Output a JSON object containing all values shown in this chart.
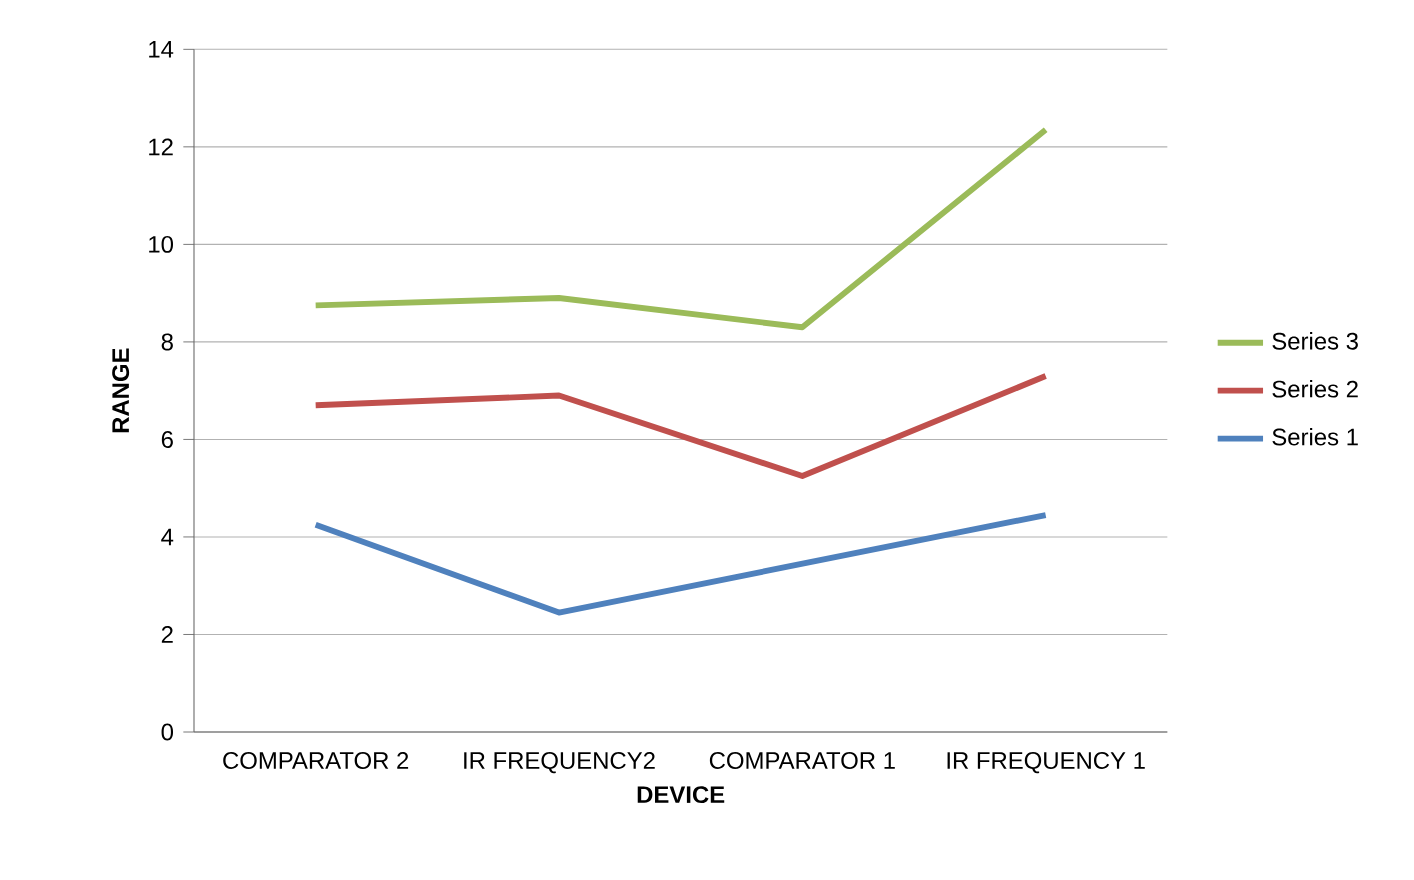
{
  "chart_data": {
    "type": "line",
    "xlabel": "DEVICE",
    "ylabel": "RANGE",
    "categories": [
      "COMPARATOR 2",
      "IR FREQUENCY2",
      "COMPARATOR 1",
      "IR FREQUENCY 1"
    ],
    "series": [
      {
        "name": "Series 1",
        "color": "#4f81bd",
        "values": [
          4.25,
          2.45,
          3.45,
          4.45
        ]
      },
      {
        "name": "Series 2",
        "color": "#c0504d",
        "values": [
          6.7,
          6.9,
          5.25,
          7.3
        ]
      },
      {
        "name": "Series 3",
        "color": "#9bbb59",
        "values": [
          8.75,
          8.9,
          8.3,
          12.35
        ]
      }
    ],
    "ylim": [
      0,
      14
    ],
    "yticks": [
      0,
      2,
      4,
      6,
      8,
      10,
      12,
      14
    ],
    "grid": "y",
    "legend": "right",
    "marker": "none"
  }
}
